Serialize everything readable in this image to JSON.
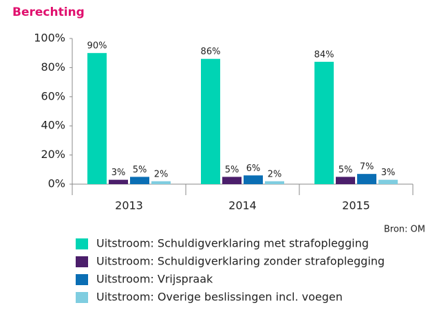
{
  "chart_data": {
    "type": "bar",
    "title": "Berechting",
    "source": "Bron: OM",
    "categories": [
      "2013",
      "2014",
      "2015"
    ],
    "series": [
      {
        "name": "Uitstroom: Schuldigverklaring met strafoplegging",
        "color": "#00d4b4",
        "values": [
          90,
          86,
          84
        ],
        "value_labels": [
          "90%",
          "86%",
          "84%"
        ]
      },
      {
        "name": "Uitstroom: Schuldigverklaring zonder strafoplegging",
        "color": "#4b1e6b",
        "values": [
          3,
          5,
          5
        ],
        "value_labels": [
          "3%",
          "5%",
          "5%"
        ]
      },
      {
        "name": "Uitstroom: Vrijspraak",
        "color": "#0a6eb4",
        "values": [
          5,
          6,
          7
        ],
        "value_labels": [
          "5%",
          "6%",
          "7%"
        ]
      },
      {
        "name": "Uitstroom: Overige beslissingen incl. voegen",
        "color": "#7fcde0",
        "values": [
          2,
          2,
          3
        ],
        "value_labels": [
          "2%",
          "2%",
          "3%"
        ]
      }
    ],
    "ylim": [
      0,
      100
    ],
    "yticks": [
      {
        "value": 0,
        "label": "0%"
      },
      {
        "value": 20,
        "label": "20%"
      },
      {
        "value": 40,
        "label": "40%"
      },
      {
        "value": 60,
        "label": "60%"
      },
      {
        "value": 80,
        "label": "80%"
      },
      {
        "value": 100,
        "label": "100%"
      }
    ],
    "grid": false
  }
}
